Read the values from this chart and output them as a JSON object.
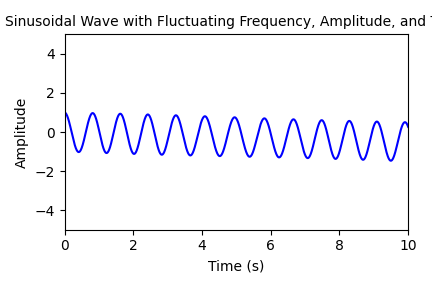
{
  "title": "Sinusoidal Wave with Fluctuating Frequency, Amplitude, and Trend",
  "xlabel": "Time (s)",
  "ylabel": "Amplitude",
  "x_start": 0,
  "x_end": 10,
  "num_points": 2000,
  "line_color": "blue",
  "line_width": 1.5,
  "ylim": [
    -5,
    5
  ],
  "xlim": [
    0,
    10
  ],
  "base_frequency": 1.2,
  "freq_fluctuation": 0.05,
  "freq_fluct_rate": 0.15,
  "base_amplitude": 1.0,
  "amp_fluctuation": 0.02,
  "amp_fluct_rate": 0.1,
  "trend_slope": -0.05,
  "title_fontsize": 10,
  "label_fontsize": 10,
  "tick_fontsize": 10,
  "background_color": "#ffffff",
  "figwidth": 4.32,
  "figheight": 2.88,
  "dpi": 100
}
